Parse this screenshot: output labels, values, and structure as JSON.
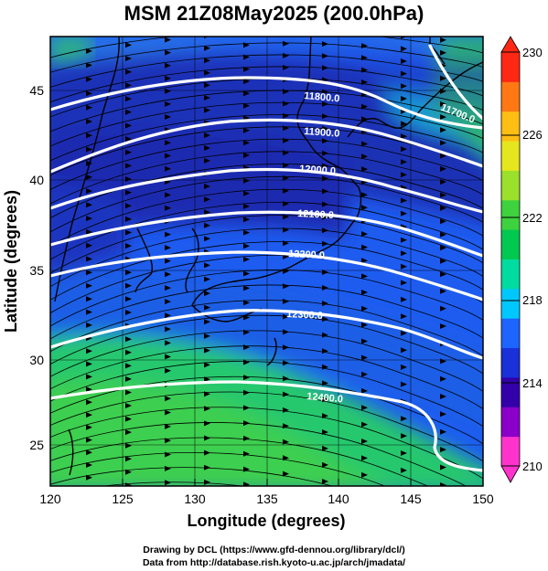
{
  "title": "MSM 21Z08May2025 (200.0hPa)",
  "x_axis": {
    "label": "Longitude (degrees)",
    "ticks": [
      "120",
      "125",
      "130",
      "135",
      "140",
      "145",
      "150"
    ]
  },
  "y_axis": {
    "label": "Latitude  (degrees)",
    "ticks": [
      "25",
      "30",
      "35",
      "40",
      "45"
    ]
  },
  "colorbar": {
    "ticks": [
      "230",
      "226",
      "222",
      "218",
      "214",
      "210"
    ],
    "range": [
      210,
      230
    ],
    "colors": [
      "#ff33cc",
      "#8a00c8",
      "#3300aa",
      "#1a30d8",
      "#1e64ff",
      "#00c8ff",
      "#00dca0",
      "#00c850",
      "#3ed23e",
      "#9be02a",
      "#e6e61e",
      "#ffbe14",
      "#ff7814",
      "#ff2814"
    ]
  },
  "contours": [
    {
      "label": "11700.0"
    },
    {
      "label": "11800.0"
    },
    {
      "label": "11900.0"
    },
    {
      "label": "12000.0"
    },
    {
      "label": "12100.0"
    },
    {
      "label": "12200.0"
    },
    {
      "label": "12300.0"
    },
    {
      "label": "12400.0"
    }
  ],
  "credits": {
    "line1": "Drawing by DCL (https://www.gfd-dennou.org/library/dcl/)",
    "line2": "Data from http://database.rish.kyoto-u.ac.jp/arch/jmadata/"
  }
}
